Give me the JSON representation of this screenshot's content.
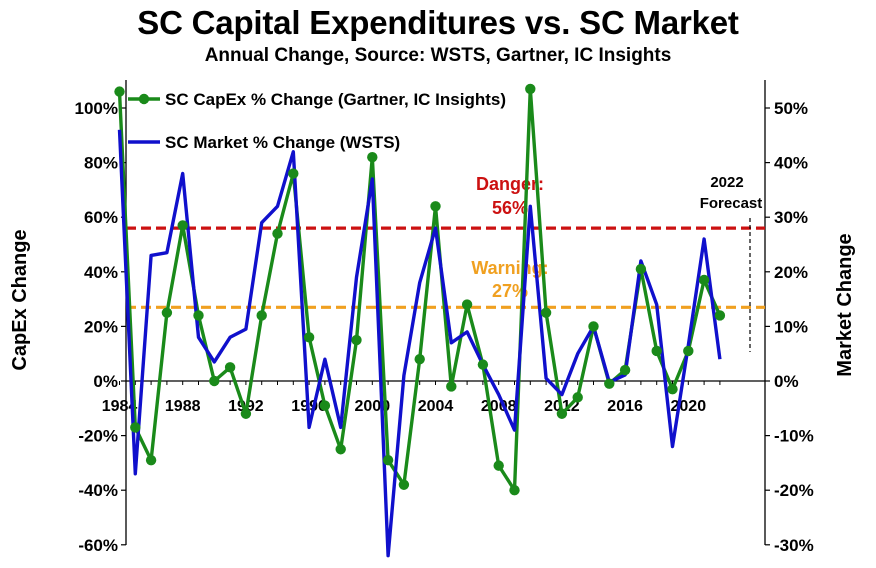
{
  "title": "SC Capital Expenditures vs. SC Market",
  "subtitle": "Annual Change, Source: WSTS, Gartner, IC Insights",
  "chart_data": {
    "type": "line",
    "x": [
      1984,
      1985,
      1986,
      1987,
      1988,
      1989,
      1990,
      1991,
      1992,
      1993,
      1994,
      1995,
      1996,
      1997,
      1998,
      1999,
      2000,
      2001,
      2002,
      2003,
      2004,
      2005,
      2006,
      2007,
      2008,
      2009,
      2010,
      2011,
      2012,
      2013,
      2014,
      2015,
      2016,
      2017,
      2018,
      2019,
      2020,
      2021,
      2022
    ],
    "xticks": [
      1984,
      1988,
      1992,
      1996,
      2000,
      2004,
      2008,
      2012,
      2016,
      2020
    ],
    "xtick_labels": [
      "1984",
      "1988",
      "1992",
      "1996",
      "2000",
      "2004",
      "2008",
      "2012",
      "2016",
      "2020"
    ],
    "ylabel": "CapEx Change",
    "ylim": [
      -60,
      110
    ],
    "yticks": [
      -60,
      -40,
      -20,
      0,
      20,
      40,
      60,
      80,
      100
    ],
    "ytick_labels": [
      "-60%",
      "-40%",
      "-20%",
      "0%",
      "20%",
      "40%",
      "60%",
      "80%",
      "100%"
    ],
    "y2label": "Market Change",
    "y2lim": [
      -30,
      55
    ],
    "y2ticks": [
      -30,
      -20,
      -10,
      0,
      10,
      20,
      30,
      40,
      50
    ],
    "y2tick_labels": [
      "-30%",
      "-20%",
      "-10%",
      "0%",
      "10%",
      "20%",
      "30%",
      "40%",
      "50%"
    ],
    "series": [
      {
        "name": "SC CapEx % Change (Gartner, IC Insights)",
        "axis": "left",
        "color": "#1a8a1a",
        "marker": "circle",
        "values": [
          106,
          -17,
          -29,
          25,
          57,
          24,
          0,
          5,
          -12,
          24,
          54,
          76,
          16,
          -9,
          -25,
          15,
          82,
          -29,
          -38,
          8,
          64,
          -2,
          28,
          6,
          -31,
          -40,
          107,
          25,
          -12,
          -6,
          20,
          -1,
          4,
          41,
          11,
          -3,
          11,
          37,
          24
        ]
      },
      {
        "name": "SC Market % Change (WSTS)",
        "axis": "right",
        "color": "#1010cc",
        "marker": "none",
        "values": [
          46,
          -17,
          23,
          23.5,
          38,
          8,
          3.5,
          8,
          9.5,
          29,
          32,
          42,
          -8.5,
          4,
          -8.5,
          19,
          37,
          -32,
          1,
          18,
          28,
          7,
          9,
          3,
          -2.5,
          -9,
          32,
          0.5,
          -2.5,
          5,
          10,
          -0.2,
          1.1,
          22,
          14,
          -12,
          6.5,
          26,
          4
        ]
      }
    ],
    "hlines": [
      {
        "label": "Danger:",
        "value_label": "56%",
        "y": 56,
        "color": "#cc1111"
      },
      {
        "label": "Warning:",
        "value_label": "27%",
        "y": 27,
        "color": "#f0a020"
      }
    ],
    "annotation": {
      "line1": "2022",
      "line2": "Forecast",
      "x": 2022
    },
    "grid": false,
    "legend": "top-left"
  }
}
